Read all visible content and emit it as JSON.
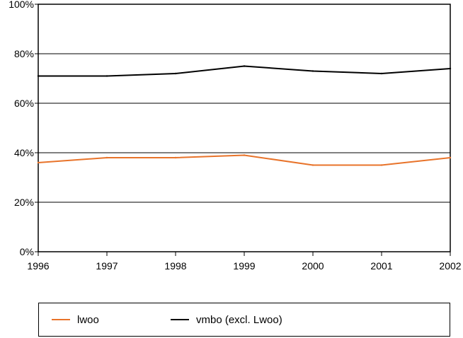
{
  "chart_data": {
    "type": "line",
    "title": "",
    "xlabel": "",
    "ylabel": "",
    "categories": [
      "1996",
      "1997",
      "1998",
      "1999",
      "2000",
      "2001",
      "2002"
    ],
    "ylim": [
      0,
      100
    ],
    "yticks": [
      "0%",
      "20%",
      "40%",
      "60%",
      "80%",
      "100%"
    ],
    "grid": true,
    "legend_position": "bottom",
    "series": [
      {
        "name": "lwoo",
        "color": "#e8732a",
        "values": [
          36,
          38,
          38,
          39,
          35,
          35,
          38
        ]
      },
      {
        "name": "vmbo (excl. Lwoo)",
        "color": "#000000",
        "values": [
          71,
          71,
          72,
          75,
          73,
          72,
          74
        ]
      }
    ]
  }
}
